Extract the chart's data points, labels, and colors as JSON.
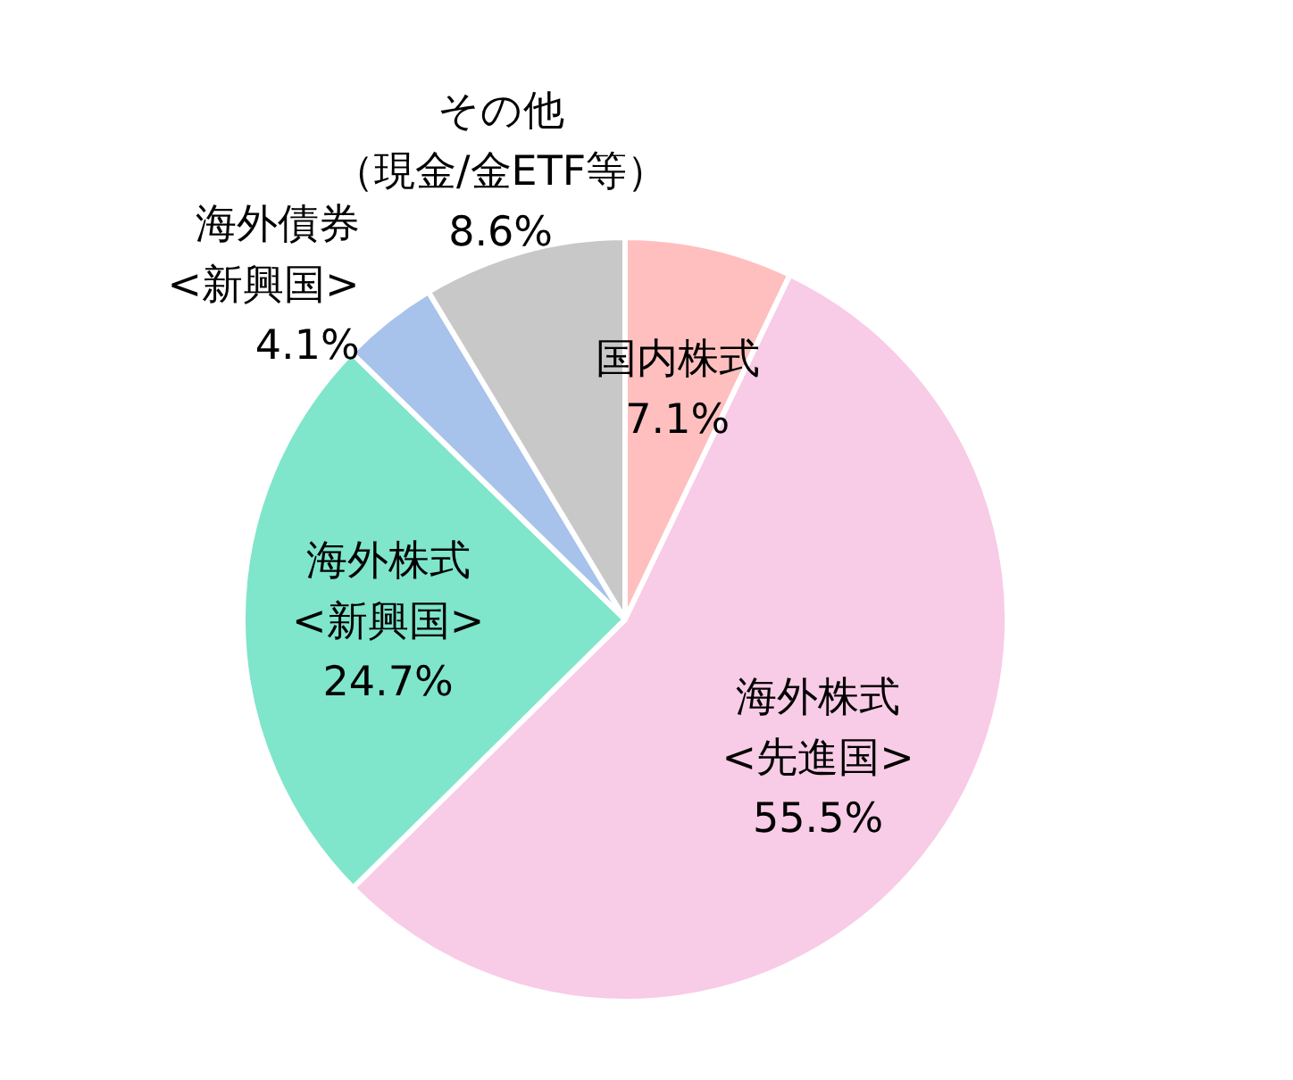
{
  "chart_data": {
    "type": "pie",
    "categories": [
      "国内株式",
      "海外株式<先進国>",
      "海外株式<新興国>",
      "海外債券<新興国>",
      "その他（現金/金ETF等）"
    ],
    "values": [
      7.1,
      55.5,
      24.7,
      4.1,
      8.6
    ],
    "value_labels": [
      "7.1%",
      "55.5%",
      "24.7%",
      "4.1%",
      "8.6%"
    ],
    "colors": [
      "#ffbfbf",
      "#f8cbe6",
      "#7fe5cb",
      "#a7c3ec",
      "#c8c8c8"
    ]
  }
}
